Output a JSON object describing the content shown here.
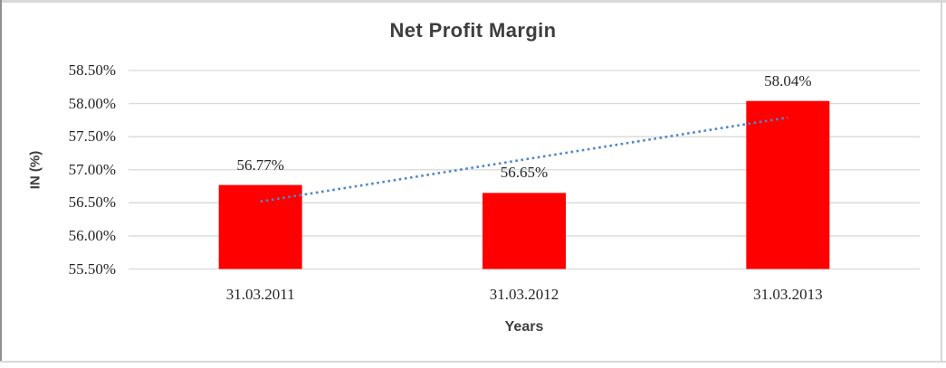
{
  "chart_data": {
    "type": "bar",
    "title": "Net Profit Margin",
    "xlabel": "Years",
    "ylabel": "IN (%)",
    "categories": [
      "31.03.2011",
      "31.03.2012",
      "31.03.2013"
    ],
    "values": [
      56.77,
      56.65,
      58.04
    ],
    "data_labels": [
      "56.77%",
      "56.65%",
      "58.04%"
    ],
    "ylim": [
      55.5,
      58.5
    ],
    "ytick_step": 0.5,
    "ytick_labels": [
      "55.50%",
      "56.00%",
      "56.50%",
      "57.00%",
      "57.50%",
      "58.00%",
      "58.50%"
    ],
    "grid": true,
    "legend": "none",
    "bar_color": "#ff0000",
    "gridline_color": "#d9d9d9",
    "label_color": "#262626",
    "title_color": "#3e3e3e",
    "trendline": {
      "type": "linear",
      "style": "dotted",
      "color": "#4f86c8",
      "start_value": 56.52,
      "end_value": 57.79
    }
  }
}
